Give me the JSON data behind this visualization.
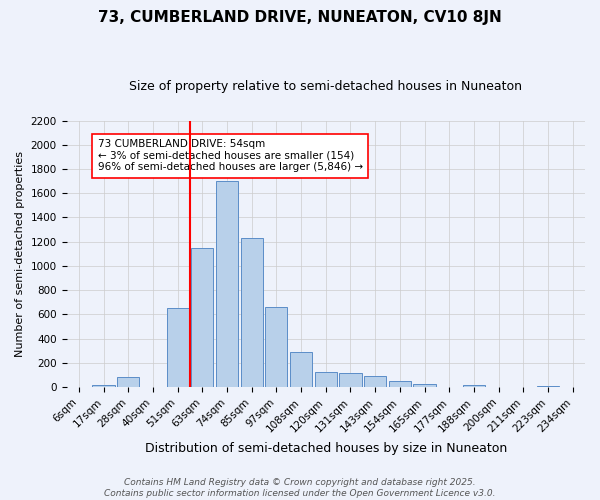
{
  "title1": "73, CUMBERLAND DRIVE, NUNEATON, CV10 8JN",
  "title2": "Size of property relative to semi-detached houses in Nuneaton",
  "xlabel": "Distribution of semi-detached houses by size in Nuneaton",
  "ylabel": "Number of semi-detached properties",
  "categories": [
    "6sqm",
    "17sqm",
    "28sqm",
    "40sqm",
    "51sqm",
    "63sqm",
    "74sqm",
    "85sqm",
    "97sqm",
    "108sqm",
    "120sqm",
    "131sqm",
    "143sqm",
    "154sqm",
    "165sqm",
    "177sqm",
    "188sqm",
    "200sqm",
    "211sqm",
    "223sqm",
    "234sqm"
  ],
  "values": [
    0,
    15,
    80,
    0,
    650,
    1150,
    1700,
    1230,
    665,
    290,
    125,
    120,
    90,
    50,
    25,
    0,
    15,
    0,
    0,
    10,
    0
  ],
  "bar_color": "#b8d0ea",
  "bar_edge_color": "#5b8dc8",
  "red_line_x": 4.5,
  "annotation_text": "73 CUMBERLAND DRIVE: 54sqm\n← 3% of semi-detached houses are smaller (154)\n96% of semi-detached houses are larger (5,846) →",
  "ylim": [
    0,
    2200
  ],
  "yticks": [
    0,
    200,
    400,
    600,
    800,
    1000,
    1200,
    1400,
    1600,
    1800,
    2000,
    2200
  ],
  "footer1": "Contains HM Land Registry data © Crown copyright and database right 2025.",
  "footer2": "Contains public sector information licensed under the Open Government Licence v3.0.",
  "bg_color": "#eef2fb",
  "title1_fontsize": 11,
  "title2_fontsize": 9,
  "xlabel_fontsize": 9,
  "ylabel_fontsize": 8,
  "tick_fontsize": 7.5,
  "annotation_fontsize": 7.5,
  "footer_fontsize": 6.5
}
